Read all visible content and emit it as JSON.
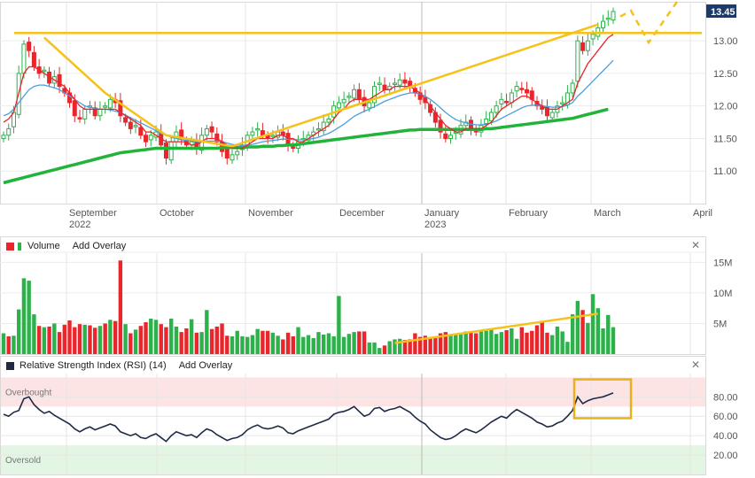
{
  "chart_data": [
    {
      "type": "candlestick",
      "panel": "price",
      "x_labels": [
        "September",
        "October",
        "November",
        "December",
        "January",
        "February",
        "March",
        "April"
      ],
      "year_labels": [
        "2022",
        "2023"
      ],
      "y_ticks": [
        "13.00",
        "12.50",
        "12.00",
        "11.50",
        "11.00"
      ],
      "ylim": [
        10.5,
        13.6
      ],
      "last_price_label": "13.45",
      "colors": {
        "up": "#2db14a",
        "down": "#e8262b",
        "ma_fast": "#e8262b",
        "ma_mid": "#4a9ee0",
        "ma_slow": "#22b33a",
        "annotation": "#f5c21b"
      },
      "close": [
        11.55,
        11.65,
        11.9,
        12.5,
        12.95,
        12.85,
        12.6,
        12.5,
        12.55,
        12.35,
        12.45,
        12.3,
        12.2,
        12.05,
        11.85,
        11.8,
        11.95,
        12.0,
        11.85,
        11.95,
        12.0,
        12.1,
        12.05,
        11.85,
        11.75,
        11.65,
        11.7,
        11.55,
        11.45,
        11.55,
        11.6,
        11.4,
        11.2,
        11.45,
        11.6,
        11.5,
        11.4,
        11.45,
        11.35,
        11.55,
        11.65,
        11.6,
        11.45,
        11.3,
        11.2,
        11.25,
        11.3,
        11.4,
        11.55,
        11.6,
        11.65,
        11.55,
        11.5,
        11.55,
        11.6,
        11.55,
        11.4,
        11.35,
        11.45,
        11.5,
        11.55,
        11.6,
        11.65,
        11.75,
        11.8,
        12.0,
        12.05,
        12.1,
        12.15,
        12.25,
        12.1,
        12.0,
        12.05,
        12.3,
        12.35,
        12.25,
        12.3,
        12.35,
        12.4,
        12.35,
        12.3,
        12.2,
        12.1,
        12.05,
        11.9,
        11.75,
        11.6,
        11.5,
        11.55,
        11.6,
        11.7,
        11.75,
        11.65,
        11.6,
        11.7,
        11.8,
        11.9,
        12.0,
        12.1,
        12.05,
        12.2,
        12.3,
        12.25,
        12.2,
        12.1,
        12.0,
        11.95,
        11.85,
        11.9,
        12.0,
        12.05,
        12.2,
        12.35,
        13.0,
        12.85,
        13.0,
        13.1,
        13.2,
        13.3,
        13.35,
        13.45
      ],
      "ma_fast": [
        11.75,
        11.8,
        11.9,
        12.2,
        12.5,
        12.6,
        12.6,
        12.55,
        12.5,
        12.45,
        12.4,
        12.35,
        12.3,
        12.2,
        12.1,
        12.0,
        11.95,
        11.95,
        11.95,
        11.95,
        11.95,
        11.95,
        11.95,
        11.9,
        11.85,
        11.8,
        11.75,
        11.7,
        11.6,
        11.6,
        11.55,
        11.5,
        11.45,
        11.45,
        11.45,
        11.45,
        11.45,
        11.4,
        11.4,
        11.45,
        11.5,
        11.5,
        11.5,
        11.45,
        11.4,
        11.35,
        11.35,
        11.35,
        11.4,
        11.45,
        11.5,
        11.5,
        11.5,
        11.5,
        11.55,
        11.55,
        11.5,
        11.5,
        11.45,
        11.45,
        11.5,
        11.55,
        11.6,
        11.65,
        11.7,
        11.8,
        11.9,
        11.95,
        12.05,
        12.1,
        12.1,
        12.1,
        12.1,
        12.15,
        12.2,
        12.25,
        12.25,
        12.3,
        12.3,
        12.3,
        12.3,
        12.25,
        12.2,
        12.1,
        12.0,
        11.9,
        11.8,
        11.7,
        11.65,
        11.6,
        11.6,
        11.65,
        11.65,
        11.65,
        11.65,
        11.7,
        11.75,
        11.85,
        11.95,
        12.0,
        12.05,
        12.1,
        12.15,
        12.15,
        12.1,
        12.05,
        12.0,
        11.95,
        11.95,
        11.95,
        12.0,
        12.05,
        12.1,
        12.35,
        12.5,
        12.65,
        12.75,
        12.85,
        12.95,
        13.05,
        13.1
      ],
      "ma_mid": [
        11.85,
        11.88,
        11.95,
        12.05,
        12.15,
        12.25,
        12.3,
        12.32,
        12.32,
        12.3,
        12.28,
        12.25,
        12.2,
        12.15,
        12.1,
        12.05,
        12.0,
        11.98,
        11.96,
        11.95,
        11.95,
        11.94,
        11.92,
        11.9,
        11.86,
        11.82,
        11.78,
        11.74,
        11.7,
        11.66,
        11.62,
        11.58,
        11.55,
        11.52,
        11.5,
        11.48,
        11.47,
        11.46,
        11.45,
        11.45,
        11.46,
        11.46,
        11.46,
        11.45,
        11.43,
        11.41,
        11.4,
        11.39,
        11.4,
        11.41,
        11.43,
        11.45,
        11.46,
        11.47,
        11.48,
        11.49,
        11.49,
        11.48,
        11.48,
        11.48,
        11.49,
        11.5,
        11.52,
        11.55,
        11.58,
        11.62,
        11.67,
        11.72,
        11.78,
        11.84,
        11.88,
        11.92,
        11.95,
        11.99,
        12.03,
        12.07,
        12.1,
        12.13,
        12.16,
        12.18,
        12.2,
        12.2,
        12.18,
        12.15,
        12.1,
        12.04,
        11.97,
        11.9,
        11.84,
        11.79,
        11.76,
        11.74,
        11.72,
        11.71,
        11.71,
        11.72,
        11.74,
        11.77,
        11.81,
        11.85,
        11.89,
        11.93,
        11.97,
        12.0,
        12.01,
        12.01,
        12.0,
        11.99,
        11.98,
        11.98,
        11.99,
        12.01,
        12.05,
        12.15,
        12.22,
        12.3,
        12.38,
        12.46,
        12.54,
        12.62,
        12.7
      ],
      "ma_slow": [
        10.82,
        10.84,
        10.86,
        10.88,
        10.9,
        10.92,
        10.94,
        10.96,
        10.98,
        11.0,
        11.02,
        11.04,
        11.06,
        11.08,
        11.1,
        11.12,
        11.14,
        11.16,
        11.18,
        11.2,
        11.22,
        11.24,
        11.26,
        11.28,
        11.29,
        11.3,
        11.31,
        11.32,
        11.33,
        11.34,
        11.35,
        11.35,
        11.35,
        11.35,
        11.35,
        11.35,
        11.35,
        11.35,
        11.35,
        11.35,
        11.35,
        11.35,
        11.35,
        11.36,
        11.36,
        11.36,
        11.36,
        11.36,
        11.37,
        11.37,
        11.37,
        11.38,
        11.38,
        11.38,
        11.39,
        11.39,
        11.4,
        11.4,
        11.41,
        11.42,
        11.43,
        11.44,
        11.45,
        11.46,
        11.47,
        11.48,
        11.49,
        11.5,
        11.51,
        11.52,
        11.53,
        11.54,
        11.55,
        11.56,
        11.57,
        11.58,
        11.59,
        11.6,
        11.61,
        11.62,
        11.63,
        11.63,
        11.64,
        11.64,
        11.64,
        11.64,
        11.64,
        11.64,
        11.64,
        11.64,
        11.64,
        11.64,
        11.64,
        11.64,
        11.64,
        11.65,
        11.65,
        11.66,
        11.67,
        11.68,
        11.69,
        11.7,
        11.71,
        11.72,
        11.73,
        11.74,
        11.75,
        11.76,
        11.77,
        11.78,
        11.79,
        11.8,
        11.81,
        11.83,
        11.85,
        11.87,
        11.89,
        11.91,
        11.93,
        11.95
      ]
    },
    {
      "type": "bar",
      "panel": "volume",
      "title": "Volume",
      "add_overlay_label": "Add Overlay",
      "y_ticks": [
        "15M",
        "10M",
        "5M"
      ],
      "ylim": [
        0,
        16.5
      ],
      "values": [
        3.4,
        2.9,
        3.0,
        7.3,
        12.4,
        12.0,
        6.5,
        4.6,
        4.4,
        4.5,
        5.0,
        3.6,
        4.8,
        5.5,
        4.4,
        4.9,
        4.8,
        4.7,
        4.3,
        4.6,
        5.0,
        5.6,
        5.4,
        15.3,
        4.9,
        3.4,
        4.0,
        4.6,
        5.2,
        5.8,
        5.6,
        4.9,
        4.4,
        5.8,
        4.5,
        3.6,
        4.2,
        5.7,
        3.5,
        3.6,
        7.2,
        4.1,
        4.5,
        5.0,
        3.0,
        2.9,
        3.8,
        2.9,
        2.8,
        3.1,
        4.1,
        3.8,
        3.8,
        3.5,
        3.0,
        2.4,
        3.5,
        2.9,
        4.4,
        2.8,
        3.1,
        2.6,
        3.6,
        3.2,
        3.4,
        2.9,
        9.5,
        2.8,
        3.3,
        3.6,
        3.7,
        3.7,
        1.9,
        1.9,
        1.0,
        1.4,
        2.1,
        2.4,
        2.5,
        2.3,
        2.4,
        3.4,
        2.8,
        3.0,
        2.6,
        2.9,
        3.4,
        3.6,
        3.1,
        3.3,
        3.4,
        3.7,
        3.6,
        3.4,
        3.7,
        3.8,
        4.0,
        3.3,
        3.6,
        3.9,
        4.2,
        2.5,
        4.4,
        3.5,
        3.8,
        4.7,
        5.2,
        3.5,
        3.1,
        4.5,
        3.7,
        2.0,
        6.5,
        8.7,
        7.2,
        5.1,
        9.8,
        7.5,
        4.2,
        6.4,
        4.4
      ],
      "up": [
        1,
        0,
        1,
        1,
        1,
        1,
        1,
        0,
        1,
        0,
        1,
        0,
        0,
        0,
        0,
        0,
        1,
        0,
        0,
        1,
        0,
        1,
        0,
        0,
        1,
        0,
        1,
        0,
        0,
        1,
        1,
        0,
        0,
        1,
        1,
        0,
        0,
        1,
        0,
        1,
        1,
        0,
        0,
        0,
        0,
        1,
        1,
        1,
        1,
        1,
        1,
        0,
        0,
        1,
        1,
        0,
        0,
        0,
        1,
        1,
        1,
        1,
        1,
        1,
        1,
        1,
        1,
        1,
        1,
        1,
        0,
        0,
        1,
        1,
        1,
        0,
        1,
        1,
        1,
        0,
        0,
        0,
        0,
        0,
        0,
        0,
        0,
        0,
        1,
        1,
        1,
        1,
        0,
        0,
        1,
        1,
        1,
        1,
        1,
        0,
        1,
        1,
        0,
        0,
        0,
        0,
        0,
        0,
        1,
        1,
        1,
        1,
        1,
        1,
        0,
        1,
        1,
        1,
        1,
        1,
        1
      ]
    },
    {
      "type": "line",
      "panel": "rsi",
      "title": "Relative Strength Index (RSI) (14)",
      "add_overlay_label": "Add Overlay",
      "y_ticks": [
        "80.00",
        "60.00",
        "40.00",
        "20.00"
      ],
      "ylim": [
        0,
        104
      ],
      "overbought_label": "Overbought",
      "oversold_label": "Oversold",
      "overbought_band": [
        70,
        100
      ],
      "oversold_band": [
        0,
        30
      ],
      "values": [
        62,
        60,
        64,
        66,
        78,
        80,
        72,
        67,
        63,
        65,
        61,
        58,
        55,
        52,
        47,
        44,
        47,
        49,
        46,
        48,
        50,
        52,
        50,
        44,
        42,
        40,
        42,
        38,
        37,
        40,
        42,
        38,
        34,
        40,
        44,
        42,
        40,
        41,
        38,
        43,
        47,
        45,
        41,
        38,
        35,
        37,
        38,
        41,
        46,
        49,
        51,
        48,
        47,
        48,
        50,
        48,
        43,
        42,
        45,
        47,
        49,
        51,
        53,
        55,
        57,
        62,
        64,
        65,
        67,
        70,
        65,
        60,
        62,
        68,
        69,
        65,
        67,
        68,
        70,
        67,
        64,
        59,
        55,
        52,
        46,
        42,
        38,
        36,
        37,
        40,
        44,
        47,
        45,
        43,
        46,
        50,
        54,
        57,
        60,
        58,
        63,
        67,
        64,
        61,
        58,
        54,
        52,
        49,
        50,
        53,
        55,
        60,
        66,
        80,
        73,
        76,
        78,
        79,
        80,
        82,
        84
      ]
    }
  ]
}
